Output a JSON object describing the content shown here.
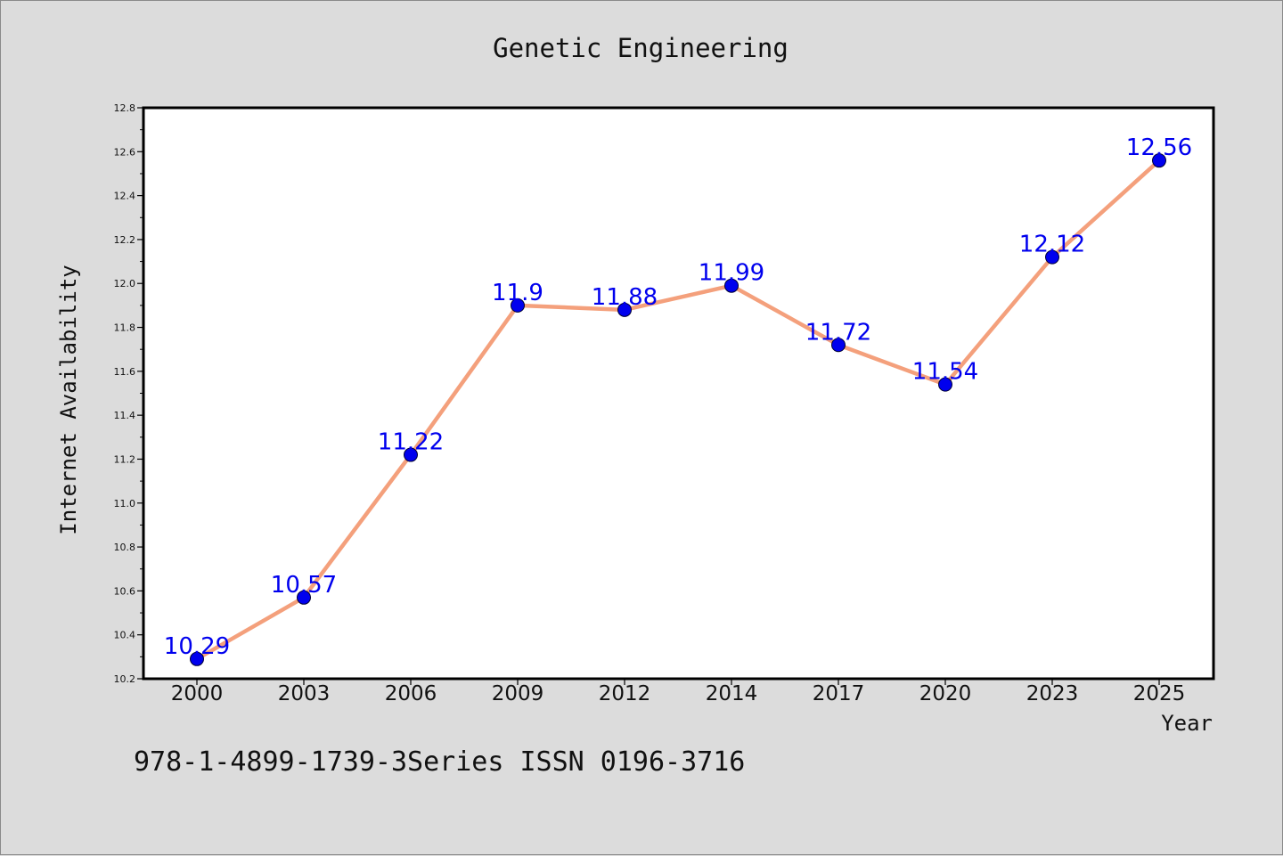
{
  "chart_data": {
    "type": "line",
    "title": "Genetic Engineering",
    "xlabel": "Year",
    "ylabel": "Internet Availability",
    "categories": [
      "2000",
      "2003",
      "2006",
      "2009",
      "2012",
      "2014",
      "2017",
      "2020",
      "2023",
      "2025"
    ],
    "series": [
      {
        "values": [
          10.29,
          10.57,
          11.22,
          11.9,
          11.88,
          11.99,
          11.72,
          11.54,
          12.12,
          12.56
        ],
        "labels": [
          "10.29",
          "10.57",
          "11.22",
          "11.9",
          "11.88",
          "11.99",
          "11.72",
          "11.54",
          "12.12",
          "12.56"
        ]
      }
    ],
    "ylim": [
      10.2,
      12.8
    ],
    "yticks": [
      "10.2",
      "10.4",
      "10.6",
      "10.8",
      "11.0",
      "11.2",
      "11.4",
      "11.6",
      "11.8",
      "12.0",
      "12.2",
      "12.4",
      "12.6",
      "12.8"
    ],
    "grid": false,
    "colors": {
      "line": "#f4a07c",
      "marker": "#0000ee",
      "label": "#0000ee",
      "plot_background": "#ffffff",
      "figure_background": "#dcdcdc"
    }
  },
  "footer_text": "978-1-4899-1739-3Series ISSN 0196-3716"
}
